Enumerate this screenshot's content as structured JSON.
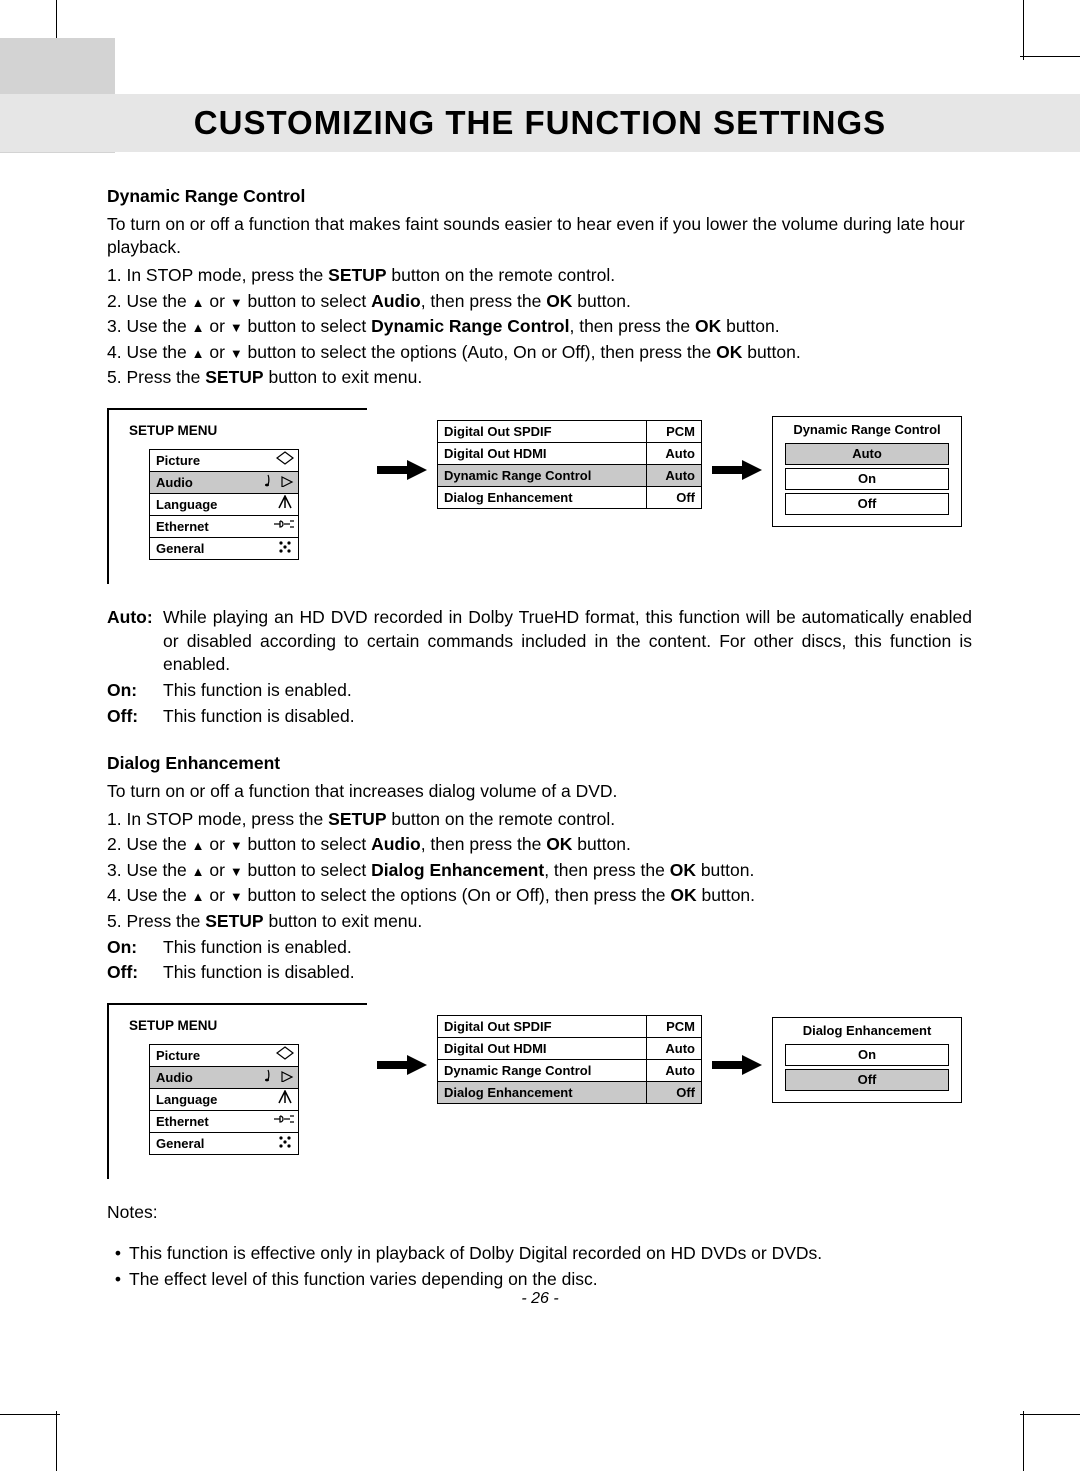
{
  "page": {
    "title": "CUSTOMIZING THE FUNCTION SETTINGS",
    "number": "- 26 -"
  },
  "drc": {
    "heading": "Dynamic Range Control",
    "intro": "To turn on or off a function that makes faint sounds easier to hear even if you lower the volume during late hour playback.",
    "steps": {
      "s1a": "1. In STOP mode, press the ",
      "s1b": "SETUP",
      "s1c": " button on the remote control.",
      "s2a": "2. Use the ",
      "s2b": " or ",
      "s2c": " button to select ",
      "s2d": "Audio",
      "s2e": ", then press the ",
      "s2f": "OK",
      "s2g": " button.",
      "s3a": "3. Use the ",
      "s3b": " or ",
      "s3c": " button to select ",
      "s3d": "Dynamic Range Control",
      "s3e": ", then press the ",
      "s3f": "OK",
      "s3g": " button.",
      "s4a": "4. Use the ",
      "s4b": " or ",
      "s4c": " button to select the options (Auto, On or Off), then press the ",
      "s4d": "OK",
      "s4e": " button.",
      "s5a": "5. Press the ",
      "s5b": "SETUP",
      "s5c": " button to exit menu."
    },
    "defs": {
      "auto_label": "Auto:",
      "auto_text": "While playing an HD DVD recorded in Dolby TrueHD format, this function will be automatically enabled or disabled according to certain commands included in the content. For other discs, this function is enabled.",
      "on_label": "On:",
      "on_text": "This function is enabled.",
      "off_label": "Off:",
      "off_text": "This function is disabled."
    }
  },
  "de": {
    "heading": "Dialog Enhancement",
    "intro": "To turn on or off a function that increases dialog volume of a DVD.",
    "steps": {
      "s1a": "1. In STOP mode, press the ",
      "s1b": "SETUP",
      "s1c": " button on the remote control.",
      "s2a": "2. Use the ",
      "s2b": " or ",
      "s2c": " button to select ",
      "s2d": "Audio",
      "s2e": ", then press the ",
      "s2f": "OK",
      "s2g": " button.",
      "s3a": "3. Use the ",
      "s3b": " or ",
      "s3c": " button to select ",
      "s3d": "Dialog Enhancement",
      "s3e": ", then press the ",
      "s3f": "OK",
      "s3g": " button.",
      "s4a": "4. Use the ",
      "s4b": " or ",
      "s4c": " button to select the options (On or Off), then press the ",
      "s4d": "OK",
      "s4e": " button.",
      "s5a": "5. Press the ",
      "s5b": "SETUP",
      "s5c": " button to exit menu."
    },
    "defs": {
      "on_label": "On:",
      "on_text": "This function is enabled.",
      "off_label": "Off:",
      "off_text": "This function is disabled."
    },
    "notes_head": "Notes:",
    "note1": "This function is effective only in playback of Dolby Digital recorded on HD DVDs or DVDs.",
    "note2": "The effect level of this function varies depending on the disc."
  },
  "setup_menu": {
    "title": "SETUP MENU",
    "items": [
      "Picture",
      "Audio",
      "Language",
      "Ethernet",
      "General"
    ],
    "selected_index": 1,
    "icons": [
      "diamond",
      "music",
      "font",
      "plug",
      "dots"
    ]
  },
  "audio_submenu": {
    "rows": [
      {
        "label": "Digital Out SPDIF",
        "value": "PCM"
      },
      {
        "label": "Digital Out HDMI",
        "value": "Auto"
      },
      {
        "label": "Dynamic Range Control",
        "value": "Auto"
      },
      {
        "label": "Dialog Enhancement",
        "value": "Off"
      }
    ],
    "selected_drc": 2,
    "selected_de": 3
  },
  "drc_options": {
    "title": "Dynamic Range Control",
    "options": [
      "Auto",
      "On",
      "Off"
    ],
    "selected": 0
  },
  "de_options": {
    "title": "Dialog Enhancement",
    "options": [
      "On",
      "Off"
    ],
    "selected": 1
  },
  "glyphs": {
    "up": "▲",
    "down": "▼",
    "bullet": "•"
  },
  "colors": {
    "page_bg": "#ffffff",
    "band_bg": "#e6e6e6",
    "grey_block": "#d3d3d3",
    "sel_bg": "#c9c9c9",
    "line": "#000000"
  }
}
